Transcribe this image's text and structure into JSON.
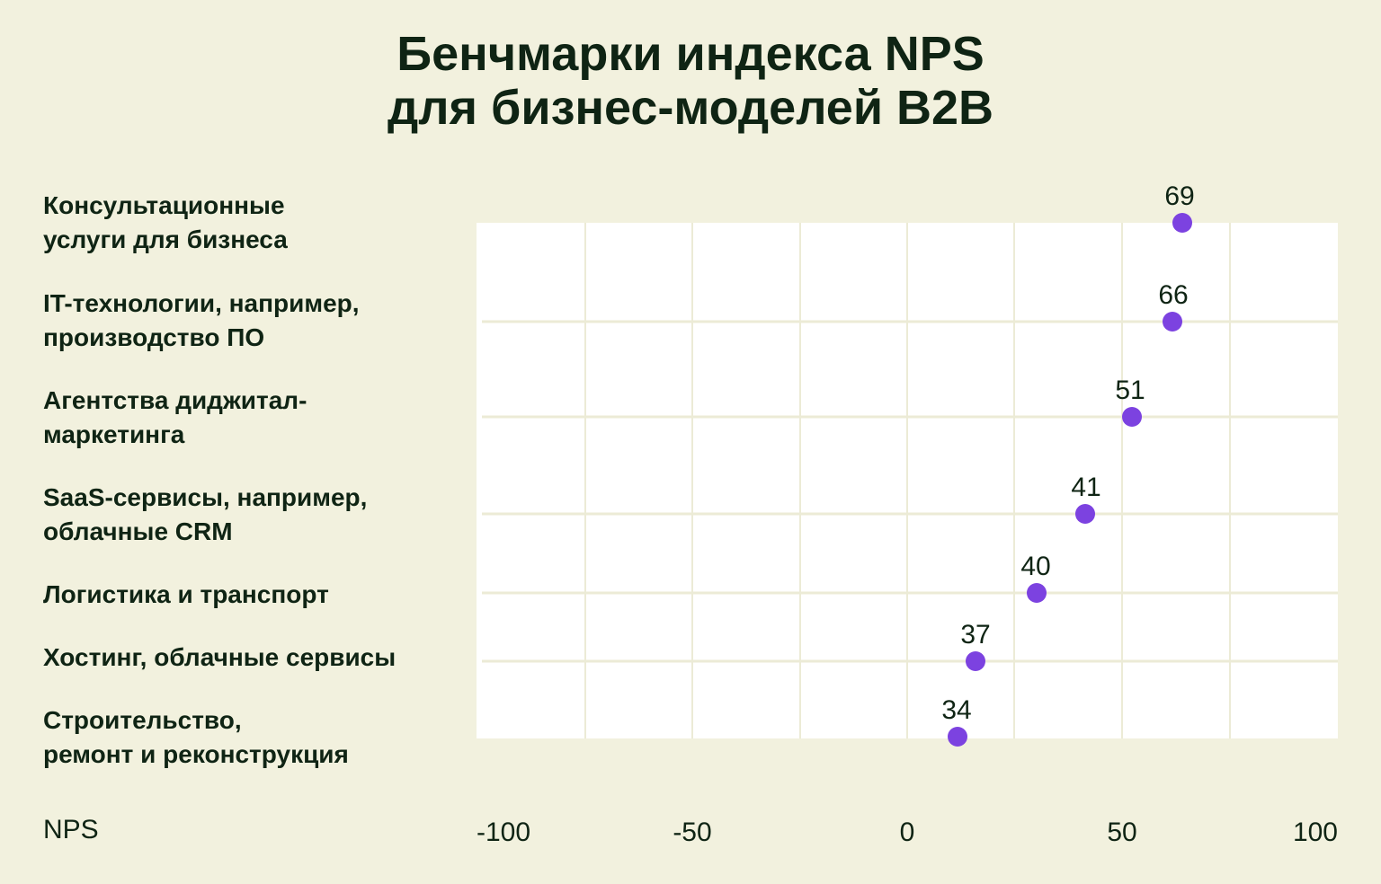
{
  "colors": {
    "background": "#f2f1de",
    "plot_background": "#ffffff",
    "grid": "#ecebd6",
    "dot": "#7c42e0",
    "text": "#0f2414"
  },
  "chart_data": {
    "type": "scatter",
    "title_lines": [
      "Бенчмарки индекса NPS",
      "для бизнес-моделей B2B"
    ],
    "xlabel": "NPS",
    "ylabel": "",
    "xlim": [
      -100,
      100
    ],
    "x_ticks": [
      -100,
      -50,
      0,
      50,
      100
    ],
    "x_tick_labels": [
      "-100",
      "-50",
      "0",
      "50",
      "100"
    ],
    "grid": true,
    "categories": [
      {
        "lines": [
          "Консультационные",
          "услуги для бизнеса"
        ],
        "value": 69
      },
      {
        "lines": [
          "IT-технологии, например,",
          "производство ПО"
        ],
        "value": 66
      },
      {
        "lines": [
          "Агентства диджитал-",
          "маркетинга"
        ],
        "value": 51
      },
      {
        "lines": [
          "SaaS-сервисы, например,",
          "облачные CRM"
        ],
        "value": 41
      },
      {
        "lines": [
          "Логистика и транспорт"
        ],
        "value": 40
      },
      {
        "lines": [
          "Хостинг, облачные сервисы"
        ],
        "value": 37
      },
      {
        "lines": [
          "Строительство,",
          "ремонт и реконструкция"
        ],
        "value": 34
      }
    ]
  }
}
